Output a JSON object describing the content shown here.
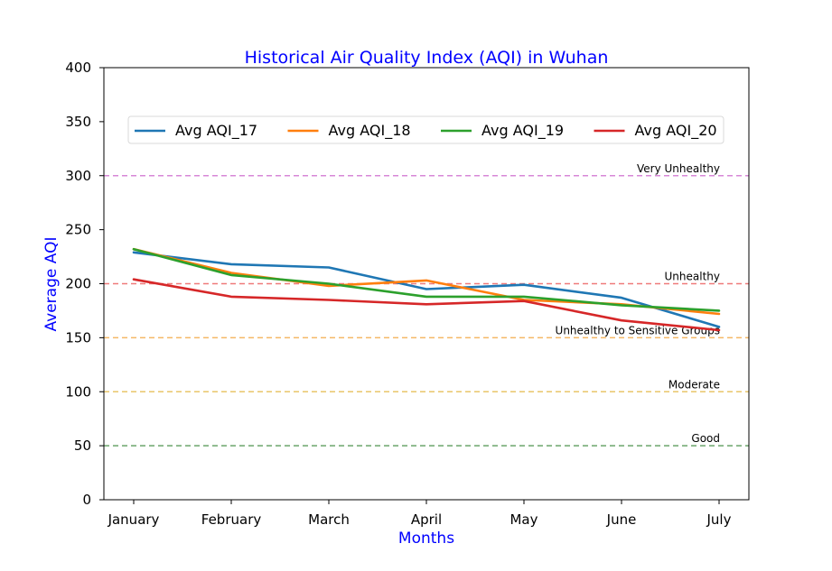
{
  "chart_data": {
    "type": "line",
    "title": "Historical Air Quality Index (AQI) in Wuhan",
    "xlabel": "Months",
    "ylabel": "Average AQI",
    "ylim": [
      0,
      400
    ],
    "yticks": [
      0,
      50,
      100,
      150,
      200,
      250,
      300,
      350,
      400
    ],
    "categories": [
      "January",
      "February",
      "March",
      "April",
      "May",
      "June",
      "July"
    ],
    "grid": false,
    "legend_position": "top",
    "series": [
      {
        "name": "Avg AQI_17",
        "color": "#1f77b4",
        "values": [
          229,
          218,
          215,
          195,
          199,
          187,
          160
        ]
      },
      {
        "name": "Avg AQI_18",
        "color": "#ff7f0e",
        "values": [
          232,
          210,
          198,
          203,
          185,
          181,
          172
        ]
      },
      {
        "name": "Avg AQI_19",
        "color": "#2ca02c",
        "values": [
          232,
          208,
          200,
          188,
          188,
          180,
          175
        ]
      },
      {
        "name": "Avg AQI_20",
        "color": "#d62728",
        "values": [
          204,
          188,
          185,
          181,
          184,
          166,
          157
        ]
      }
    ],
    "reference_lines": [
      {
        "label": "Good",
        "value": 50,
        "color": "#6aa56a"
      },
      {
        "label": "Moderate",
        "value": 100,
        "color": "#e8c66a"
      },
      {
        "label": "Unhealthy to Sensitive Groups",
        "value": 150,
        "color": "#f5b865"
      },
      {
        "label": "Unhealthy",
        "value": 200,
        "color": "#ef7a7a"
      },
      {
        "label": "Very Unhealthy",
        "value": 300,
        "color": "#d787d7"
      }
    ]
  }
}
